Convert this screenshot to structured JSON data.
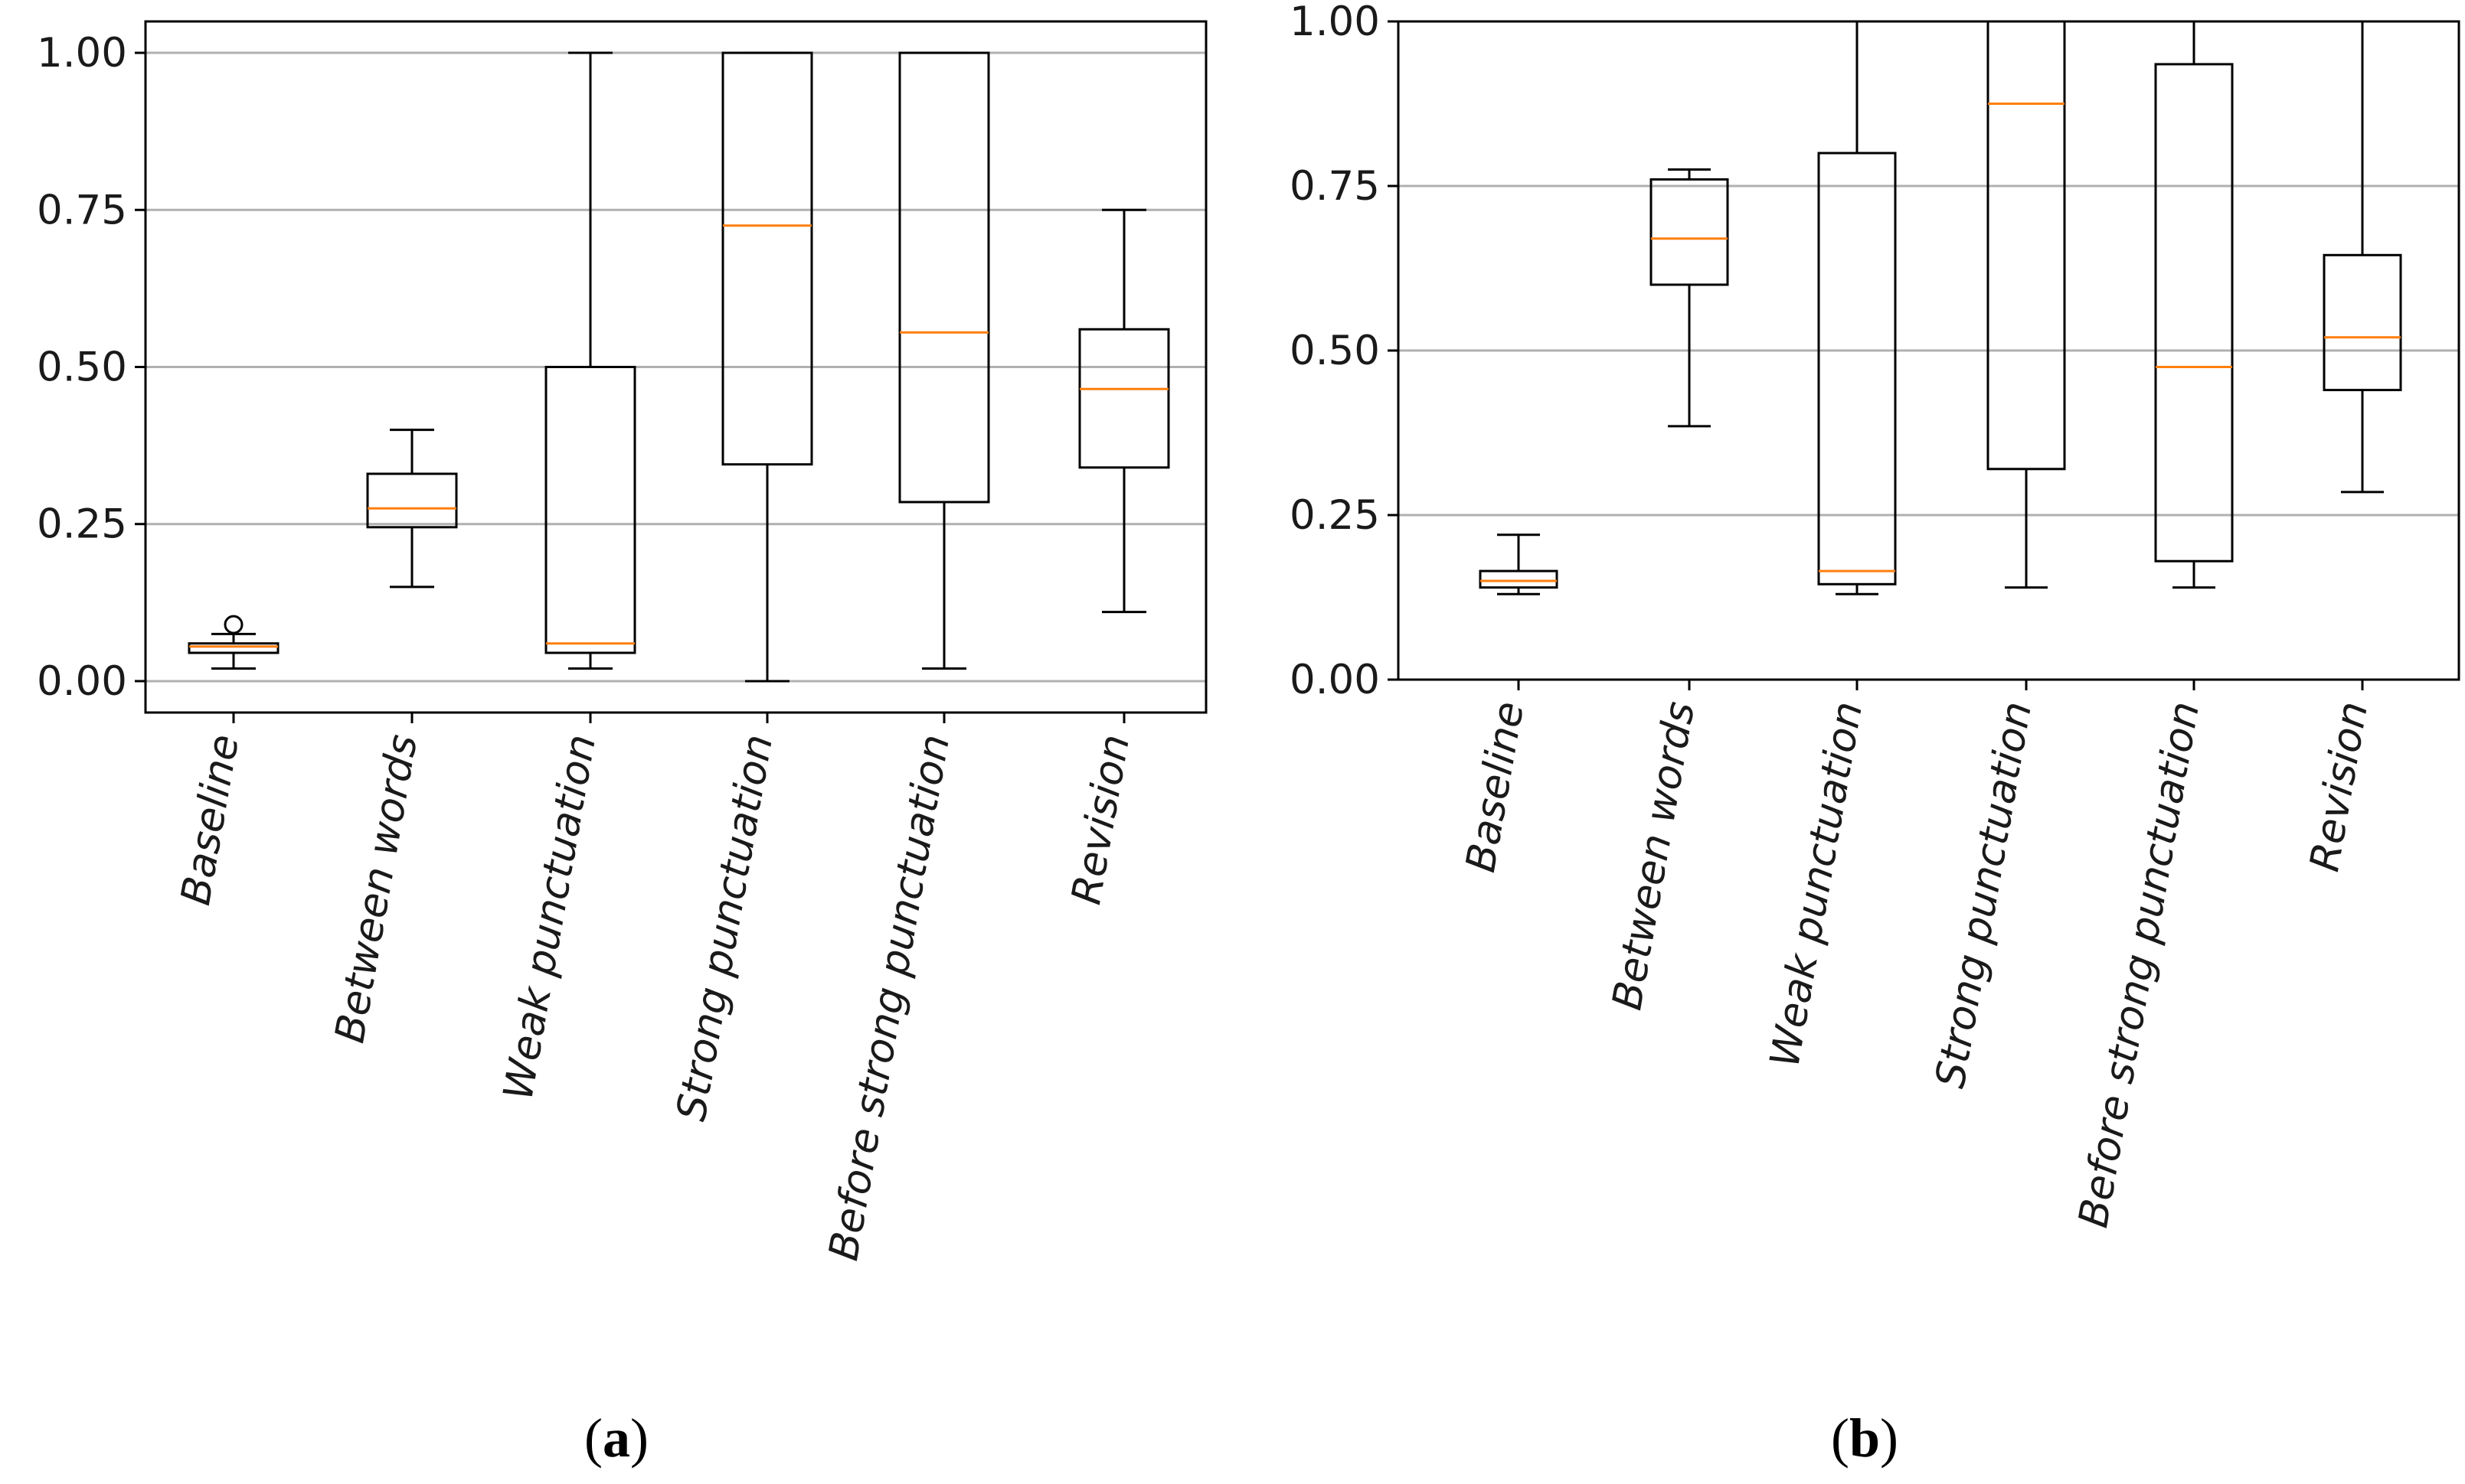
{
  "chart_data": [
    {
      "type": "boxplot",
      "panel": "a",
      "caption": {
        "open": "(",
        "letter": "a",
        "close": ")"
      },
      "categories": [
        "Baseline",
        "Between words",
        "Weak punctuation",
        "Strong punctuation",
        "Before strong punctuation",
        "Revision"
      ],
      "ylim": [
        -0.05,
        1.05
      ],
      "yticks": [
        "0.00",
        "0.25",
        "0.50",
        "0.75",
        "1.00"
      ],
      "grid": "horizontal",
      "colors": {
        "median": "#ff7f0e",
        "box": "#000000",
        "grid": "#b0b0b0"
      },
      "boxes": [
        {
          "whislo": 0.02,
          "q1": 0.045,
          "med": 0.055,
          "q3": 0.06,
          "whishi": 0.075,
          "fliers": [
            0.09
          ]
        },
        {
          "whislo": 0.15,
          "q1": 0.245,
          "med": 0.275,
          "q3": 0.33,
          "whishi": 0.4,
          "fliers": []
        },
        {
          "whislo": 0.02,
          "q1": 0.045,
          "med": 0.06,
          "q3": 0.5,
          "whishi": 1.0,
          "fliers": []
        },
        {
          "whislo": 0.0,
          "q1": 0.345,
          "med": 0.725,
          "q3": 1.0,
          "whishi": 1.0,
          "fliers": []
        },
        {
          "whislo": 0.02,
          "q1": 0.285,
          "med": 0.555,
          "q3": 1.0,
          "whishi": 1.0,
          "fliers": []
        },
        {
          "whislo": 0.11,
          "q1": 0.34,
          "med": 0.465,
          "q3": 0.56,
          "whishi": 0.75,
          "fliers": []
        }
      ]
    },
    {
      "type": "boxplot",
      "panel": "b",
      "caption": {
        "open": "(",
        "letter": "b",
        "close": ")"
      },
      "categories": [
        "Baseline",
        "Between words",
        "Weak punctuation",
        "Strong punctuation",
        "Before strong punctuation",
        "Revision"
      ],
      "ylim": [
        0.0,
        1.0
      ],
      "yticks": [
        "0.00",
        "0.25",
        "0.50",
        "0.75",
        "1.00"
      ],
      "grid": "horizontal",
      "colors": {
        "median": "#ff7f0e",
        "box": "#000000",
        "grid": "#b0b0b0"
      },
      "boxes": [
        {
          "whislo": 0.13,
          "q1": 0.14,
          "med": 0.15,
          "q3": 0.165,
          "whishi": 0.22,
          "fliers": []
        },
        {
          "whislo": 0.385,
          "q1": 0.6,
          "med": 0.67,
          "q3": 0.76,
          "whishi": 0.775,
          "fliers": []
        },
        {
          "whislo": 0.13,
          "q1": 0.145,
          "med": 0.165,
          "q3": 0.8,
          "whishi": 1.0,
          "fliers": []
        },
        {
          "whislo": 0.14,
          "q1": 0.32,
          "med": 0.875,
          "q3": 1.0,
          "whishi": 1.0,
          "fliers": []
        },
        {
          "whislo": 0.14,
          "q1": 0.18,
          "med": 0.475,
          "q3": 0.935,
          "whishi": 1.0,
          "fliers": []
        },
        {
          "whislo": 0.285,
          "q1": 0.44,
          "med": 0.52,
          "q3": 0.645,
          "whishi": 1.0,
          "fliers": []
        }
      ]
    }
  ]
}
